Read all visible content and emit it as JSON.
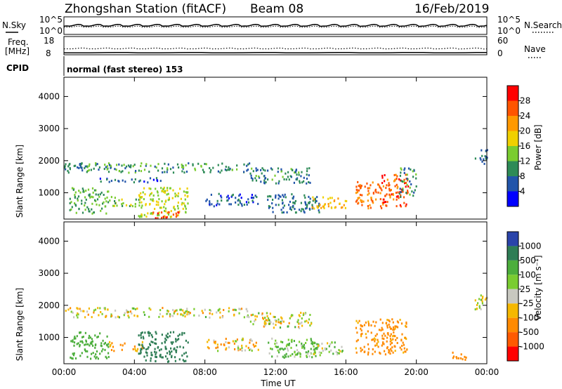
{
  "header": {
    "station": "Zhongshan Station (fitACF)",
    "beam": "Beam 08",
    "date": "16/Feb/2019"
  },
  "top_panels": {
    "nsky_label": "N.Sky",
    "nsearch_label": "N.Search",
    "freq_label_1": "Freq.",
    "freq_label_2": "[MHz]",
    "nave_label": "Nave",
    "cpid_label": "CPID",
    "cpid_value": "normal (fast stereo) 153",
    "noise_ticks_left": [
      "10^5",
      "10^0"
    ],
    "noise_ticks_right": [
      "10^5",
      "10^0"
    ],
    "freq_ticks": [
      "18",
      "8"
    ],
    "nave_ticks": [
      "60",
      "0"
    ]
  },
  "colorbars": {
    "power_label": "Power [dB]",
    "power_ticks": [
      "28",
      "24",
      "20",
      "16",
      "12",
      "8",
      "4"
    ],
    "power_colors": [
      "#ff0000",
      "#ff5500",
      "#ff9900",
      "#f0d000",
      "#7acc30",
      "#2e8b57",
      "#2255aa",
      "#0000ff"
    ],
    "velocity_label": "Velocity [m s⁻¹]",
    "velocity_ticks": [
      "1000",
      "500",
      "100",
      "25",
      "-25",
      "-100",
      "-500",
      "-1000"
    ],
    "velocity_colors": [
      "#2a44aa",
      "#2e7d55",
      "#4cae3c",
      "#7acc30",
      "#c8c8c0",
      "#f5b800",
      "#ff8a00",
      "#ff5a00",
      "#ff0000"
    ]
  },
  "chart_data": [
    {
      "type": "heatmap",
      "title": "",
      "xlabel": "Time UT",
      "ylabel": "Slant Range [km]",
      "x_ticks": [
        "00:00",
        "04:00",
        "08:00",
        "12:00",
        "16:00",
        "20:00",
        "00:00"
      ],
      "y_ticks": [
        "1000",
        "2000",
        "3000",
        "4000"
      ],
      "xlim": [
        0,
        24
      ],
      "ylim": [
        180,
        4600
      ],
      "colorbar": "power",
      "regions": [
        {
          "t0": 0.0,
          "t1": 10.5,
          "r0": 1650,
          "r1": 1950,
          "v": 10,
          "note": "upper band"
        },
        {
          "t0": 10.5,
          "t1": 14.0,
          "r0": 1300,
          "r1": 1800,
          "v": 9
        },
        {
          "t0": 2.0,
          "t1": 5.5,
          "r0": 1350,
          "r1": 1500,
          "v": 7
        },
        {
          "t0": 0.3,
          "t1": 2.5,
          "r0": 350,
          "r1": 1200,
          "v": 12
        },
        {
          "t0": 2.5,
          "t1": 4.5,
          "r0": 600,
          "r1": 900,
          "v": 14
        },
        {
          "t0": 4.2,
          "t1": 7.0,
          "r0": 250,
          "r1": 1200,
          "v": 16
        },
        {
          "t0": 5.0,
          "t1": 6.5,
          "r0": 230,
          "r1": 450,
          "v": 27
        },
        {
          "t0": 8.0,
          "t1": 11.0,
          "r0": 600,
          "r1": 1000,
          "v": 6
        },
        {
          "t0": 11.5,
          "t1": 14.5,
          "r0": 400,
          "r1": 1000,
          "v": 8
        },
        {
          "t0": 14.0,
          "t1": 16.0,
          "r0": 500,
          "r1": 900,
          "v": 20
        },
        {
          "t0": 16.5,
          "t1": 18.0,
          "r0": 500,
          "r1": 1400,
          "v": 24
        },
        {
          "t0": 18.0,
          "t1": 19.5,
          "r0": 600,
          "r1": 1600,
          "v": 27
        },
        {
          "t0": 19.0,
          "t1": 20.0,
          "r0": 900,
          "r1": 1800,
          "v": 10
        },
        {
          "t0": 23.3,
          "t1": 24.0,
          "r0": 1900,
          "r1": 2400,
          "v": 8
        }
      ]
    },
    {
      "type": "heatmap",
      "title": "",
      "xlabel": "Time UT",
      "ylabel": "Slant Range [km]",
      "x_ticks": [
        "00:00",
        "04:00",
        "08:00",
        "12:00",
        "16:00",
        "20:00",
        "00:00"
      ],
      "y_ticks": [
        "1000",
        "2000",
        "3000",
        "4000"
      ],
      "xlim": [
        0,
        24
      ],
      "ylim": [
        180,
        4600
      ],
      "colorbar": "velocity",
      "regions": [
        {
          "t0": 0.0,
          "t1": 10.5,
          "r0": 1650,
          "r1": 1950,
          "v": 0
        },
        {
          "t0": 10.5,
          "t1": 14.0,
          "r0": 1300,
          "r1": 1800,
          "v": 0
        },
        {
          "t0": 0.3,
          "t1": 2.5,
          "r0": 350,
          "r1": 1200,
          "v": 300
        },
        {
          "t0": 2.5,
          "t1": 4.5,
          "r0": 600,
          "r1": 900,
          "v": -150
        },
        {
          "t0": 4.2,
          "t1": 7.0,
          "r0": 250,
          "r1": 1200,
          "v": 800
        },
        {
          "t0": 8.0,
          "t1": 11.0,
          "r0": 600,
          "r1": 1000,
          "v": -60
        },
        {
          "t0": 11.5,
          "t1": 14.5,
          "r0": 400,
          "r1": 1000,
          "v": 120
        },
        {
          "t0": 14.0,
          "t1": 16.0,
          "r0": 500,
          "r1": 900,
          "v": 50
        },
        {
          "t0": 16.5,
          "t1": 19.5,
          "r0": 500,
          "r1": 1600,
          "v": -200
        },
        {
          "t0": 22.0,
          "t1": 22.8,
          "r0": 300,
          "r1": 600,
          "v": -300
        },
        {
          "t0": 23.3,
          "t1": 24.0,
          "r0": 1900,
          "r1": 2400,
          "v": 0
        }
      ]
    }
  ]
}
